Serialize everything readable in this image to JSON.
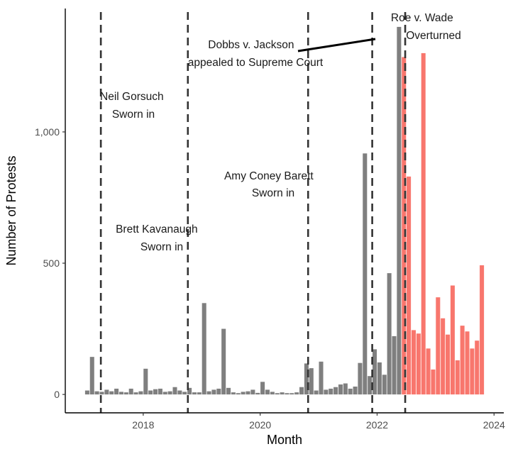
{
  "chart_data": {
    "type": "bar",
    "xlabel": "Month",
    "ylabel": "Number of Protests",
    "x_range": [
      "2016-09",
      "2024-03"
    ],
    "ylim": [
      -70,
      1470
    ],
    "x_ticks": [
      {
        "date": "2018-01",
        "label": "2018"
      },
      {
        "date": "2020-01",
        "label": "2020"
      },
      {
        "date": "2022-01",
        "label": "2022"
      },
      {
        "date": "2024-01",
        "label": "2024"
      }
    ],
    "y_ticks": [
      {
        "value": 0,
        "label": "0"
      },
      {
        "value": 500,
        "label": "500"
      },
      {
        "value": 1000,
        "label": "1,000"
      }
    ],
    "grid": false,
    "legend": "none",
    "series": [
      {
        "color": "#7f7f7f",
        "points": [
          {
            "x": "2017-01",
            "y": 15
          },
          {
            "x": "2017-02",
            "y": 143
          },
          {
            "x": "2017-03",
            "y": 12
          },
          {
            "x": "2017-04",
            "y": 10
          },
          {
            "x": "2017-05",
            "y": 18
          },
          {
            "x": "2017-06",
            "y": 12
          },
          {
            "x": "2017-07",
            "y": 22
          },
          {
            "x": "2017-08",
            "y": 10
          },
          {
            "x": "2017-09",
            "y": 8
          },
          {
            "x": "2017-10",
            "y": 22
          },
          {
            "x": "2017-11",
            "y": 8
          },
          {
            "x": "2017-12",
            "y": 12
          },
          {
            "x": "2018-01",
            "y": 98
          },
          {
            "x": "2018-02",
            "y": 15
          },
          {
            "x": "2018-03",
            "y": 20
          },
          {
            "x": "2018-04",
            "y": 22
          },
          {
            "x": "2018-05",
            "y": 10
          },
          {
            "x": "2018-06",
            "y": 12
          },
          {
            "x": "2018-07",
            "y": 28
          },
          {
            "x": "2018-08",
            "y": 15
          },
          {
            "x": "2018-09",
            "y": 10
          },
          {
            "x": "2018-10",
            "y": 25
          },
          {
            "x": "2018-11",
            "y": 8
          },
          {
            "x": "2018-12",
            "y": 8
          },
          {
            "x": "2019-01",
            "y": 348
          },
          {
            "x": "2019-02",
            "y": 12
          },
          {
            "x": "2019-03",
            "y": 18
          },
          {
            "x": "2019-04",
            "y": 22
          },
          {
            "x": "2019-05",
            "y": 250
          },
          {
            "x": "2019-06",
            "y": 25
          },
          {
            "x": "2019-07",
            "y": 8
          },
          {
            "x": "2019-08",
            "y": 5
          },
          {
            "x": "2019-09",
            "y": 10
          },
          {
            "x": "2019-10",
            "y": 12
          },
          {
            "x": "2019-11",
            "y": 18
          },
          {
            "x": "2019-12",
            "y": 6
          },
          {
            "x": "2020-01",
            "y": 48
          },
          {
            "x": "2020-02",
            "y": 18
          },
          {
            "x": "2020-03",
            "y": 10
          },
          {
            "x": "2020-04",
            "y": 5
          },
          {
            "x": "2020-05",
            "y": 8
          },
          {
            "x": "2020-06",
            "y": 5
          },
          {
            "x": "2020-07",
            "y": 5
          },
          {
            "x": "2020-08",
            "y": 8
          },
          {
            "x": "2020-09",
            "y": 28
          },
          {
            "x": "2020-10",
            "y": 118
          },
          {
            "x": "2020-11",
            "y": 100
          },
          {
            "x": "2020-12",
            "y": 15
          },
          {
            "x": "2021-01",
            "y": 125
          },
          {
            "x": "2021-02",
            "y": 18
          },
          {
            "x": "2021-03",
            "y": 22
          },
          {
            "x": "2021-04",
            "y": 28
          },
          {
            "x": "2021-05",
            "y": 38
          },
          {
            "x": "2021-06",
            "y": 42
          },
          {
            "x": "2021-07",
            "y": 22
          },
          {
            "x": "2021-08",
            "y": 30
          },
          {
            "x": "2021-09",
            "y": 120
          },
          {
            "x": "2021-10",
            "y": 918
          },
          {
            "x": "2021-11",
            "y": 70
          },
          {
            "x": "2021-12",
            "y": 172
          },
          {
            "x": "2022-01",
            "y": 122
          },
          {
            "x": "2022-02",
            "y": 75
          },
          {
            "x": "2022-03",
            "y": 462
          },
          {
            "x": "2022-04",
            "y": 222
          },
          {
            "x": "2022-05",
            "y": 1400
          }
        ]
      },
      {
        "color": "#f8766d",
        "points": [
          {
            "x": "2022-06",
            "y": 1285
          },
          {
            "x": "2022-07",
            "y": 830
          },
          {
            "x": "2022-08",
            "y": 245
          },
          {
            "x": "2022-09",
            "y": 232
          },
          {
            "x": "2022-10",
            "y": 1300
          },
          {
            "x": "2022-11",
            "y": 175
          },
          {
            "x": "2022-12",
            "y": 95
          },
          {
            "x": "2023-01",
            "y": 370
          },
          {
            "x": "2023-02",
            "y": 290
          },
          {
            "x": "2023-03",
            "y": 228
          },
          {
            "x": "2023-04",
            "y": 415
          },
          {
            "x": "2023-05",
            "y": 130
          },
          {
            "x": "2023-06",
            "y": 262
          },
          {
            "x": "2023-07",
            "y": 240
          },
          {
            "x": "2023-08",
            "y": 175
          },
          {
            "x": "2023-09",
            "y": 205
          },
          {
            "x": "2023-10",
            "y": 492
          }
        ]
      }
    ],
    "reference_lines": [
      {
        "date": "2017-04-10",
        "style": "dashed",
        "label_lines": [
          "Neil Gorsuch",
          "Sworn in"
        ]
      },
      {
        "date": "2018-10-06",
        "style": "dashed",
        "label_lines": [
          "Brett Kavanaugh",
          "Sworn in"
        ]
      },
      {
        "date": "2020-10-27",
        "style": "dashed",
        "label_lines": [
          "Amy Coney Barett",
          "Sworn in"
        ]
      },
      {
        "date": "2021-12-01",
        "style": "dashed",
        "label_lines": [
          "Dobbs v. Jackson",
          "appealed to Supreme Court"
        ]
      },
      {
        "date": "2022-06-24",
        "style": "dashed",
        "label_lines": [
          "Roe v. Wade",
          "Overturned"
        ]
      }
    ]
  }
}
